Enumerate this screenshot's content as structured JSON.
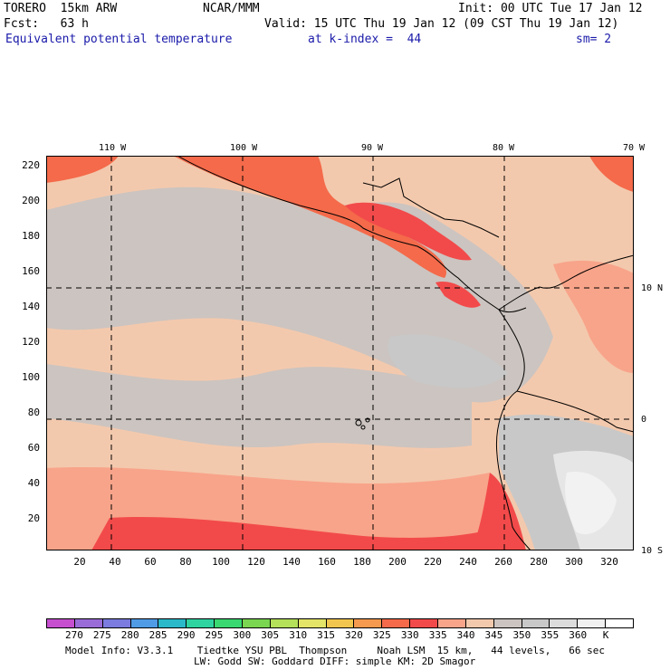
{
  "header": {
    "model": "TORERO  15km ARW",
    "org": "NCAR/MMM",
    "init": "Init: 00 UTC Tue 17 Jan 12",
    "fcst": "Fcst:   63 h",
    "valid": "Valid: 15 UTC Thu 19 Jan 12 (09 CST Thu 19 Jan 12)",
    "field": "Equivalent potential temperature",
    "level": "at k-index =  44",
    "smooth": "sm= 2"
  },
  "map": {
    "lon_labels": [
      "110 W",
      "100 W",
      "90 W",
      "80 W",
      "70 W"
    ],
    "lat_labels": [
      "10 N",
      "0",
      "10 S"
    ],
    "y_ticks": [
      "220",
      "200",
      "180",
      "160",
      "140",
      "120",
      "100",
      "80",
      "60",
      "40",
      "20"
    ],
    "x_ticks": [
      "20",
      "40",
      "60",
      "80",
      "100",
      "120",
      "140",
      "160",
      "180",
      "200",
      "220",
      "240",
      "260",
      "280",
      "300",
      "320"
    ]
  },
  "legend": {
    "labels": [
      "270",
      "275",
      "280",
      "285",
      "290",
      "295",
      "300",
      "305",
      "310",
      "315",
      "320",
      "325",
      "330",
      "335",
      "340",
      "345",
      "350",
      "355",
      "360",
      "K"
    ],
    "colors": [
      "#c64fd0",
      "#9a6cd8",
      "#7b7be0",
      "#4f9be6",
      "#2ab9c9",
      "#2fd3a0",
      "#39d870",
      "#7ad650",
      "#b4e05a",
      "#e4e468",
      "#f2c64e",
      "#f59a4e",
      "#f46a4a",
      "#f24a4a",
      "#f8a48a",
      "#f3c9ad",
      "#ccc4c0",
      "#c8c8c8",
      "#dcdcdc",
      "#f0f0f0",
      "#ffffff"
    ]
  },
  "footer": {
    "line1": "Model Info: V3.3.1    Tiedtke YSU PBL  Thompson     Noah LSM  15 km,   44 levels,   66 sec",
    "line2": "LW: Godd SW: Goddard DIFF: simple KM: 2D Smagor"
  }
}
